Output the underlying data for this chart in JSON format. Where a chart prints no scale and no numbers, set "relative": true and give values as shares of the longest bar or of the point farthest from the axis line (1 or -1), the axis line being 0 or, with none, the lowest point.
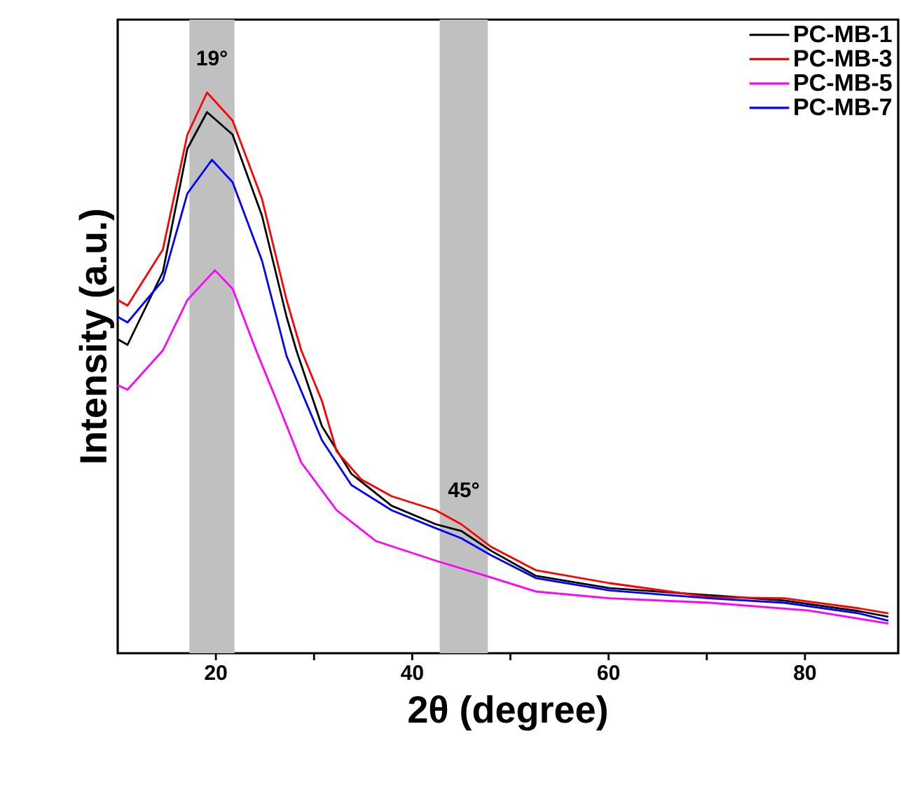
{
  "chart_data": {
    "type": "line",
    "xlabel": "2θ (degree)",
    "ylabel": "Intensity (a.u.)",
    "relative": true,
    "xlim": [
      10,
      89.5
    ],
    "xticks": [
      20,
      {
        "value": 30,
        "label": null
      },
      40,
      {
        "value": 50,
        "label": null
      },
      60,
      {
        "value": 70,
        "label": null
      },
      80
    ],
    "legend": "top right",
    "marker": "none",
    "line_style": "solid",
    "grid": false,
    "bands": [
      {
        "axis": "x",
        "from": 17.3,
        "to": 21.9,
        "label": "19°",
        "color": "#c0c0c0"
      },
      {
        "axis": "x",
        "from": 42.8,
        "to": 47.7,
        "label": "45°",
        "color": "#c0c0c0"
      }
    ],
    "series": [
      {
        "name": "PC-MB-1",
        "color": "#000000",
        "x": [
          10,
          11,
          14.6,
          17.1,
          19.1,
          21.7,
          24.7,
          27.2,
          28.2,
          30.8,
          33.8,
          37.9,
          42.4,
          45.0,
          48.0,
          52.6,
          60.1,
          70.3,
          77.9,
          85.5,
          88.5
        ],
        "values": [
          0.56,
          0.55,
          0.68,
          0.9,
          0.965,
          0.925,
          0.78,
          0.6,
          0.54,
          0.405,
          0.32,
          0.263,
          0.23,
          0.218,
          0.183,
          0.138,
          0.116,
          null,
          0.094,
          0.075,
          0.065
        ]
      },
      {
        "name": "PC-MB-3",
        "color": "#ff0000",
        "x": [
          10,
          11,
          14.6,
          17.1,
          19.1,
          21.7,
          24.7,
          27.2,
          28.7,
          30.8,
          32.3,
          34.8,
          37.9,
          42.4,
          45.0,
          48.0,
          52.6,
          60.1,
          70.3,
          77.9,
          85.5,
          88.5
        ],
        "values": [
          0.63,
          0.62,
          0.72,
          0.925,
          1.0,
          0.95,
          0.81,
          0.63,
          0.54,
          0.45,
          0.36,
          0.31,
          0.28,
          0.255,
          0.23,
          0.19,
          0.148,
          0.125,
          0.1,
          0.098,
          0.08,
          0.071
        ]
      },
      {
        "name": "PC-MB-5",
        "color": "#ff00ff",
        "x": [
          10,
          11,
          14.6,
          17.1,
          19.9,
          21.7,
          24.1,
          26.2,
          28.7,
          32.3,
          36.3,
          42.4,
          47.5,
          52.6,
          60.1,
          70.3,
          80.4,
          88.5
        ],
        "values": [
          0.478,
          0.47,
          0.54,
          0.63,
          0.683,
          0.65,
          0.54,
          0.45,
          0.34,
          0.255,
          0.2,
          0.165,
          0.138,
          0.11,
          0.098,
          0.09,
          0.076,
          0.053
        ]
      },
      {
        "name": "PC-MB-7",
        "color": "#0000ff",
        "x": [
          10,
          11,
          14.6,
          17.1,
          19.6,
          21.7,
          24.7,
          27.2,
          30.8,
          33.8,
          37.9,
          42.4,
          45.0,
          48.0,
          52.6,
          60.1,
          70.3,
          77.9,
          85.5,
          88.5
        ],
        "values": [
          0.6,
          0.59,
          0.665,
          0.82,
          0.88,
          0.84,
          0.7,
          0.53,
          0.38,
          0.3,
          0.255,
          0.223,
          0.205,
          0.175,
          0.134,
          0.112,
          0.098,
          0.09,
          0.071,
          0.058
        ]
      }
    ]
  }
}
